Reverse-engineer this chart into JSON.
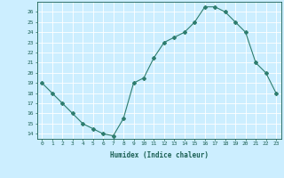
{
  "title": "",
  "xlabel": "Humidex (Indice chaleur)",
  "x": [
    0,
    1,
    2,
    3,
    4,
    5,
    6,
    7,
    8,
    9,
    10,
    11,
    12,
    13,
    14,
    15,
    16,
    17,
    18,
    19,
    20,
    21,
    22,
    23
  ],
  "y": [
    19,
    18,
    17,
    16,
    15,
    14.5,
    14,
    13.8,
    15.5,
    19,
    19.5,
    21.5,
    23,
    23.5,
    24,
    25,
    26.5,
    26.5,
    26,
    25,
    24,
    21,
    20,
    18
  ],
  "line_color": "#2e7d6e",
  "marker": "D",
  "marker_size": 2.0,
  "bg_color": "#cceeff",
  "grid_color": "#ffffff",
  "tick_color": "#1a5f52",
  "label_color": "#1a5f52",
  "ylim": [
    13.5,
    27
  ],
  "yticks": [
    14,
    15,
    16,
    17,
    18,
    19,
    20,
    21,
    22,
    23,
    24,
    25,
    26
  ],
  "xticks": [
    0,
    1,
    2,
    3,
    4,
    5,
    6,
    7,
    8,
    9,
    10,
    11,
    12,
    13,
    14,
    15,
    16,
    17,
    18,
    19,
    20,
    21,
    22,
    23
  ],
  "xlim": [
    -0.5,
    23.5
  ]
}
